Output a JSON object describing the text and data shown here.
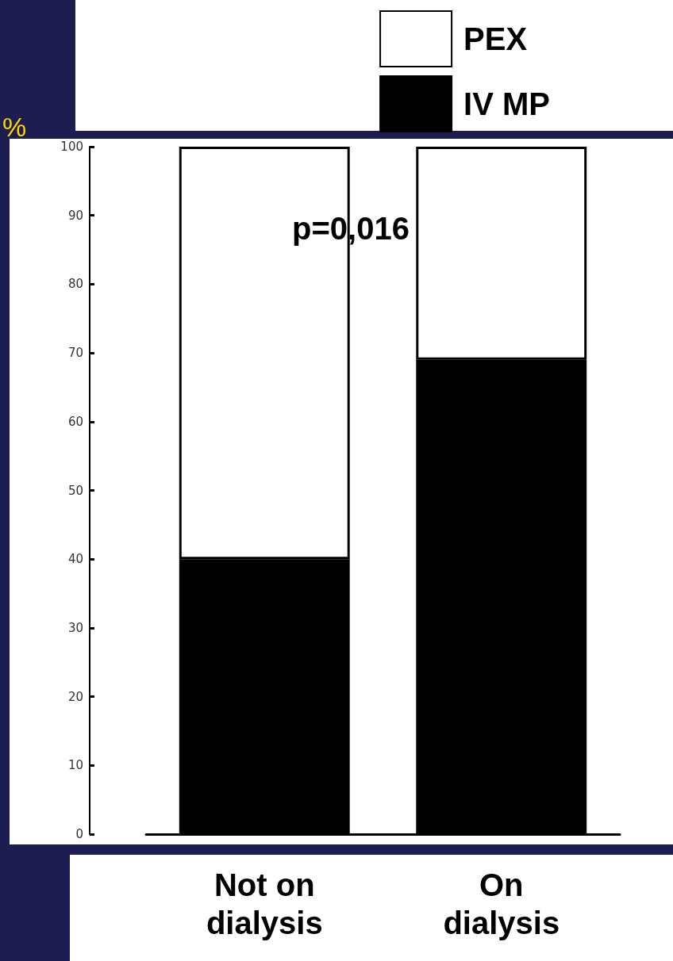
{
  "chart_data": {
    "type": "bar",
    "stacked": true,
    "ylabel": "%",
    "categories": [
      "Not on\ndialysis",
      "On\ndialysis"
    ],
    "series": [
      {
        "name": "IV MP",
        "color": "#000000",
        "values": [
          40,
          69
        ]
      },
      {
        "name": "PEX",
        "color": "#ffffff",
        "values": [
          60,
          31
        ]
      }
    ],
    "ylim": [
      0,
      100
    ],
    "yticks": [
      0,
      10,
      20,
      30,
      40,
      50,
      60,
      70,
      80,
      90,
      100
    ],
    "grid": false,
    "legend": "top right",
    "annotations": [
      "p=0,016"
    ]
  }
}
